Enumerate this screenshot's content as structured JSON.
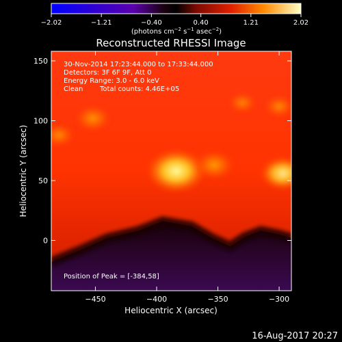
{
  "chart_data": {
    "type": "heatmap",
    "title": "Reconstructed RHESSI Image",
    "xlabel": "Heliocentric X (arcsec)",
    "ylabel": "Heliocentric Y (arcsec)",
    "xlim": [
      -486,
      -290
    ],
    "ylim": [
      -42,
      158
    ],
    "x_ticks": [
      -450,
      -400,
      -350,
      -300
    ],
    "x_tick_labels": [
      "−450",
      "−400",
      "−350",
      "−300"
    ],
    "y_ticks": [
      0,
      50,
      100,
      150
    ],
    "y_tick_labels": [
      "0",
      "50",
      "100",
      "150"
    ],
    "colorbar": {
      "range": [
        -2.02,
        2.02
      ],
      "ticks": [
        -2.02,
        -1.21,
        -0.4,
        0.4,
        1.21,
        2.02
      ],
      "tick_labels": [
        "−2.02",
        "−1.21",
        "−0.40",
        "0.40",
        "1.21",
        "2.02"
      ],
      "units_prefix": "(photons cm",
      "units_exp1": "−2",
      "units_mid": " s",
      "units_exp2": "−1",
      "units_mid2": " asec",
      "units_exp3": "−2",
      "units_suffix": ")"
    },
    "annotations": {
      "time_range": "30-Nov-2014 17:23:44.000 to 17:33:44.000",
      "detectors": "Detectors: 3F 6F 9F, Att 0",
      "energy": "Energy Range: 3.0 - 6.0 keV",
      "method": "Clean",
      "counts": "Total counts: 4.46E+05",
      "peak": "Position of Peak = [-384,58]"
    },
    "peak_position": [
      -384,
      58
    ],
    "bright_sources": [
      {
        "x": -384,
        "y": 58,
        "intensity": 2.0
      },
      {
        "x": -353,
        "y": 63,
        "intensity": 1.25
      },
      {
        "x": -297,
        "y": 56,
        "intensity": 1.35
      },
      {
        "x": -452,
        "y": 102,
        "intensity": 1.05
      },
      {
        "x": -480,
        "y": 88,
        "intensity": 0.85
      },
      {
        "x": -330,
        "y": 115,
        "intensity": 0.65
      },
      {
        "x": -300,
        "y": 112,
        "intensity": 0.75
      }
    ],
    "dark_boundary_y": [
      {
        "x": -486,
        "y": -18
      },
      {
        "x": -462,
        "y": -8
      },
      {
        "x": -440,
        "y": 2
      },
      {
        "x": -415,
        "y": 8
      },
      {
        "x": -395,
        "y": 16
      },
      {
        "x": -372,
        "y": 12
      },
      {
        "x": -355,
        "y": 2
      },
      {
        "x": -340,
        "y": -5
      },
      {
        "x": -328,
        "y": 3
      },
      {
        "x": -315,
        "y": 8
      },
      {
        "x": -300,
        "y": 5
      },
      {
        "x": -290,
        "y": 2
      }
    ]
  },
  "footer": {
    "date": "16-Aug-2017 20:27"
  }
}
